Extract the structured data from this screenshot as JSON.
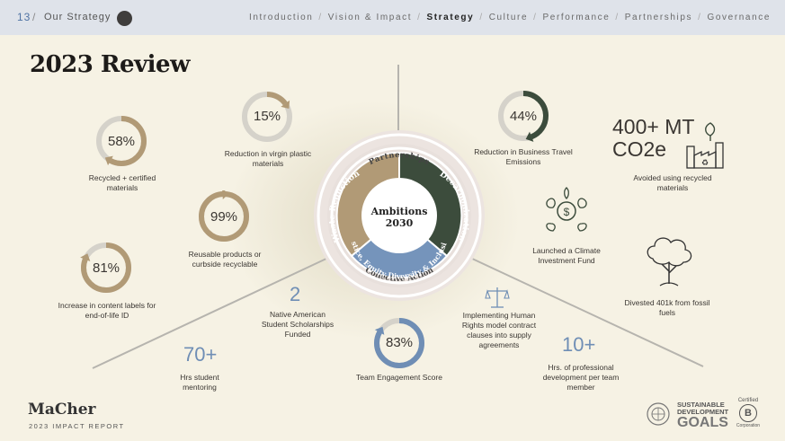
{
  "header": {
    "page_number": "13",
    "section_title": "Our Strategy",
    "nav": [
      "Introduction",
      "Vision & Impact",
      "Strategy",
      "Culture",
      "Performance",
      "Partnerships",
      "Governance"
    ],
    "active_nav": "Strategy"
  },
  "title": "2023 Review",
  "center": {
    "title": "Ambitions",
    "year": "2030",
    "segments": [
      "Waste Reduction",
      "Decarbonization",
      "Justice, Equity Diversity & Inclusion"
    ],
    "outer_top": "Partnerships",
    "outer_bottom": "Collective Action",
    "colors": {
      "waste": "#b19a76",
      "decarb": "#3c4c3c",
      "jedi": "#7594bb"
    }
  },
  "stats": {
    "recycled": {
      "value": "58%",
      "fraction": 0.58,
      "label": "Recycled + certified materials"
    },
    "virgin_plastic": {
      "value": "15%",
      "fraction": 0.15,
      "label": "Reduction in virgin plastic materials"
    },
    "reusable": {
      "value": "99%",
      "fraction": 0.99,
      "label": "Reusable products or curbside recyclable"
    },
    "content_labels": {
      "value": "81%",
      "fraction": 0.81,
      "label": "Increase in content labels for end-of-life ID"
    },
    "business_travel": {
      "value": "44%",
      "fraction": 0.44,
      "label": "Reduction in Business Travel Emissions"
    },
    "co2": {
      "line1": "400+ MT",
      "line2": "CO2e",
      "label": "Avoided using recycled materials"
    },
    "climate_fund": {
      "label": "Launched a Climate Investment Fund"
    },
    "divested": {
      "label": "Divested 401k from fossil fuels"
    },
    "scholarships": {
      "value": "2",
      "label": "Native American Student Scholarships Funded"
    },
    "human_rights": {
      "label": "Implementing Human Rights model contract clauses into supply agreements"
    },
    "mentoring": {
      "value": "70+",
      "label": "Hrs student mentoring"
    },
    "engagement": {
      "value": "83%",
      "fraction": 0.83,
      "label": "Team Engagement Score"
    },
    "development": {
      "value": "10+",
      "label": "Hrs. of professional development per team member"
    }
  },
  "footer": {
    "logo": "MaCher",
    "report": "2023 IMPACT REPORT",
    "sdg_line1": "SUSTAINABLE",
    "sdg_line2": "DEVELOPMENT",
    "sdg_goals": "GOALS",
    "b_corp": "Certified",
    "b_corp_sub": "Corporation"
  }
}
